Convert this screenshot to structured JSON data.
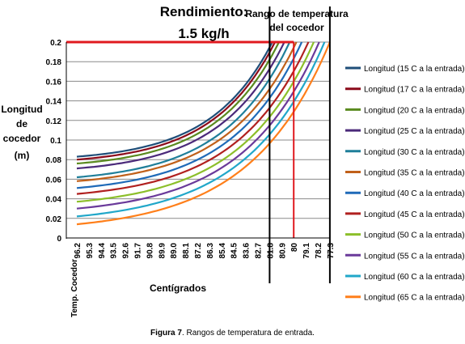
{
  "chart_data": {
    "type": "line",
    "title": "Rendimiento:",
    "subtitle": "1.5 kg/h",
    "annotation": "Rango de temperatura del cocedor",
    "annotation_lines": [
      "Rango de temperatura",
      "del cocedor"
    ],
    "ylabel_lines": [
      "Longitud",
      "de",
      "cocedor",
      "(m)"
    ],
    "xlabel": "Centígrados",
    "x_axis_title": "Temp. Cocedor",
    "x_tick_labels": [
      "96.2",
      "95.3",
      "94.4",
      "93.5",
      "92.6",
      "91.7",
      "90.8",
      "89.9",
      "89.0",
      "88.1",
      "87.2",
      "86.3",
      "85.4",
      "84.5",
      "83.6",
      "82.7",
      "81.8",
      "80.9",
      "80",
      "79.1",
      "78.2",
      "77.3"
    ],
    "ylim": [
      0,
      0.2
    ],
    "y_ticks": [
      0,
      0.02,
      0.04,
      0.06,
      0.08,
      0.1,
      0.12,
      0.14,
      0.16,
      0.18,
      0.2
    ],
    "y_tick_labels": [
      "0",
      "0.02",
      "0.04",
      "0.06",
      "0.08",
      "0.1",
      "0.12",
      "0.14",
      "0.16",
      "0.18",
      "0.2"
    ],
    "reference_lines": {
      "vertical_black": [
        "81.8",
        "77.3"
      ],
      "vertical_red": "80",
      "horizontal_red": 0.2
    },
    "legend_position": "right",
    "series": [
      {
        "name": "Longitud  (15 C a la entrada)",
        "color": "#1f4e79",
        "start": 0.083,
        "end_x": 81.6
      },
      {
        "name": "Longitud  (17 C a la entrada)",
        "color": "#8b0a1a",
        "start": 0.08,
        "end_x": 81.4
      },
      {
        "name": "Longitud  (20 C a la entrada)",
        "color": "#5a8a1f",
        "start": 0.076,
        "end_x": 81.1
      },
      {
        "name": "Longitud  (25 C a la entrada)",
        "color": "#4b2a7a",
        "start": 0.071,
        "end_x": 80.7
      },
      {
        "name": "Longitud  (30 C a la entrada)",
        "color": "#1f7f9a",
        "start": 0.062,
        "end_x": 80.3
      },
      {
        "name": "Longitud  (35 C a la entrada)",
        "color": "#c0601a",
        "start": 0.058,
        "end_x": 79.8
      },
      {
        "name": "Longitud  (40 C a la entrada)",
        "color": "#1f6ab8",
        "start": 0.051,
        "end_x": 79.4
      },
      {
        "name": "Longitud  (45 C a la entrada)",
        "color": "#b0201f",
        "start": 0.045,
        "end_x": 78.9
      },
      {
        "name": "Longitud  (50 C a la entrada)",
        "color": "#8cbf2a",
        "start": 0.037,
        "end_x": 78.5
      },
      {
        "name": "Longitud  (55 C a la entrada)",
        "color": "#6a3a9a",
        "start": 0.03,
        "end_x": 78.1
      },
      {
        "name": "Longitud  (60 C a la entrada)",
        "color": "#21a7c9",
        "start": 0.022,
        "end_x": 77.7
      },
      {
        "name": "Longitud  (65 C a la entrada)",
        "color": "#ff7f1a",
        "start": 0.014,
        "end_x": 77.3
      }
    ]
  },
  "caption": {
    "label": "Figura 7",
    "text": ". Rangos de temperatura de entrada."
  }
}
